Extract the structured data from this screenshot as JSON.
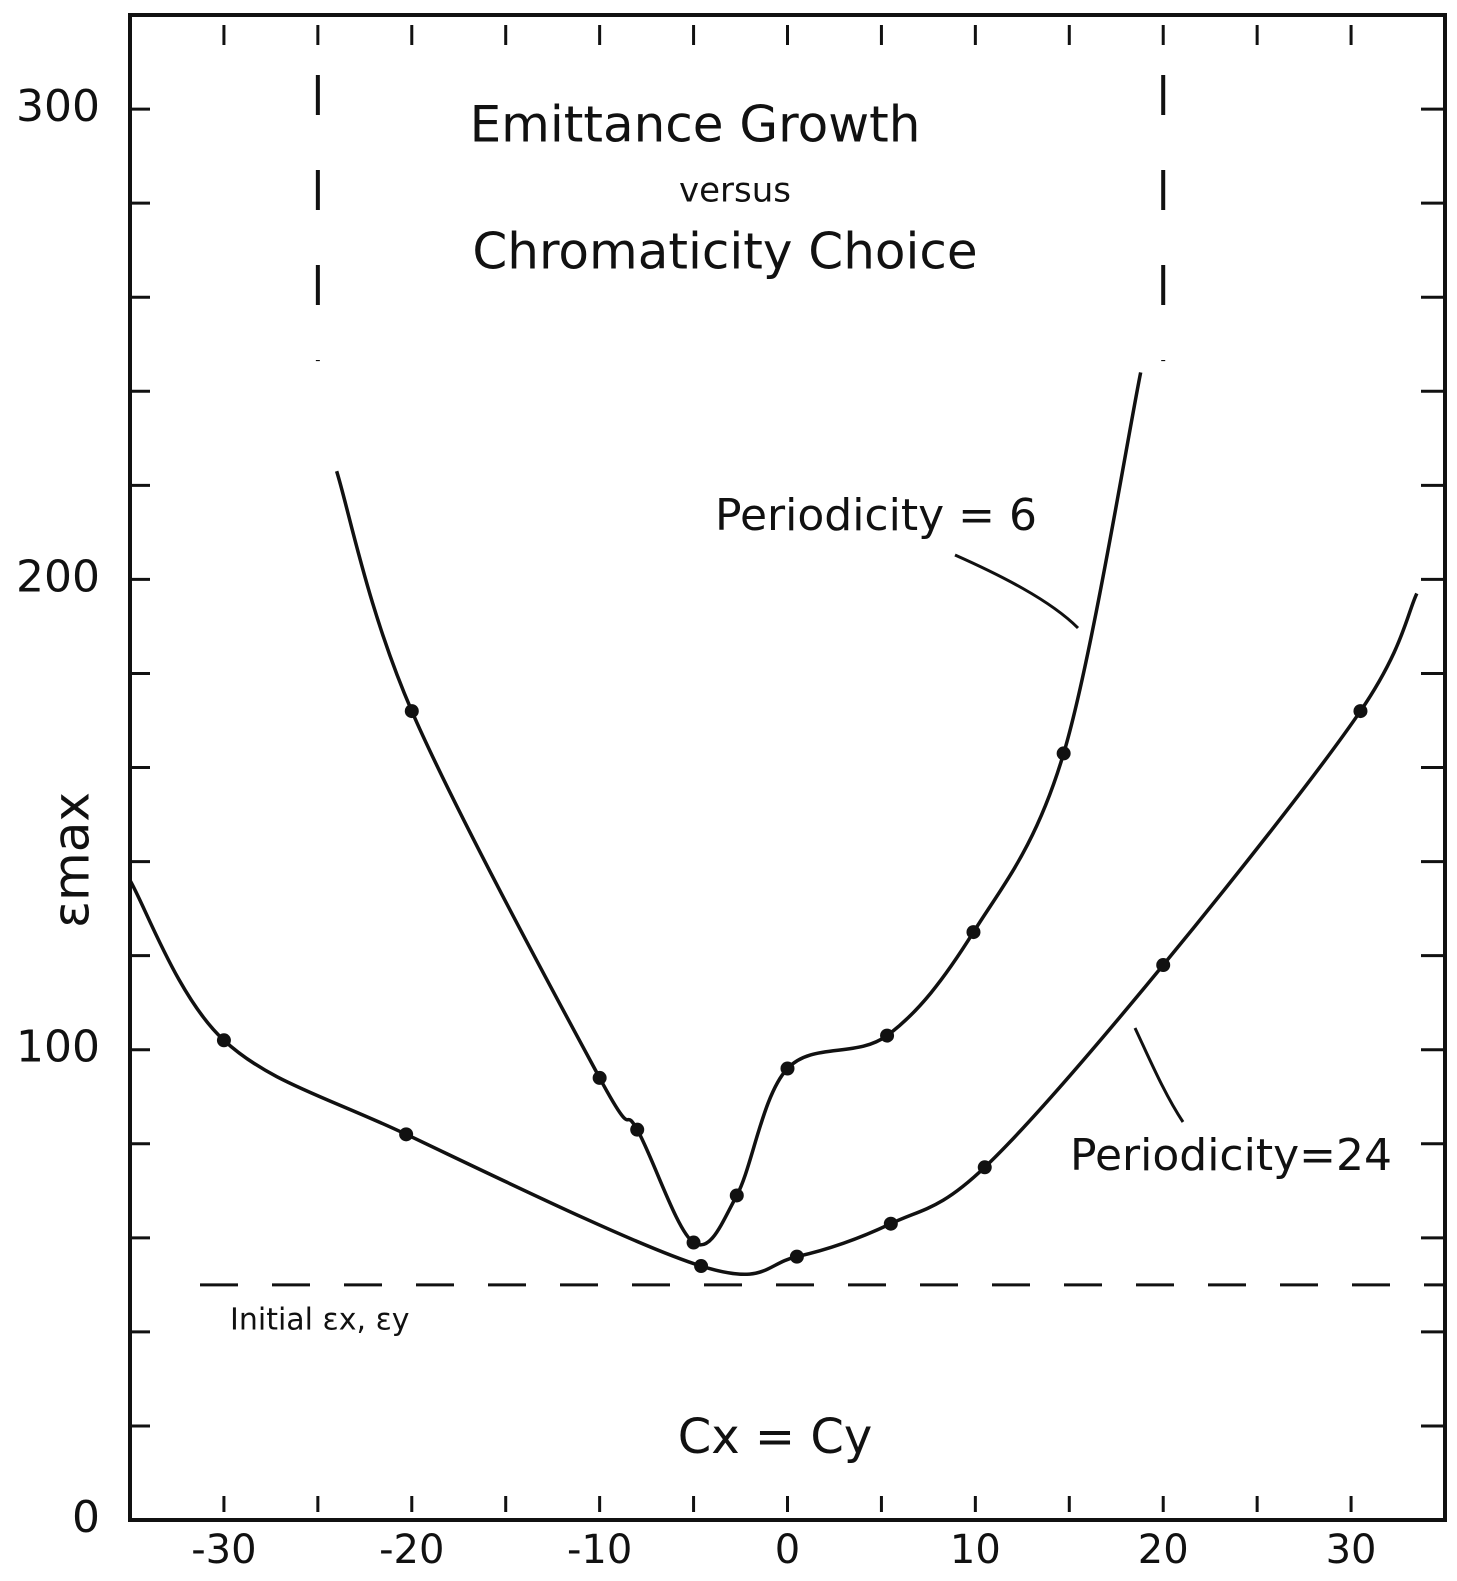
{
  "chart_data": {
    "type": "line",
    "title_lines": [
      "Emittance Growth",
      "versus",
      "Chromaticity Choice"
    ],
    "y_label": "εmax",
    "x_label": "Cx = Cy",
    "xlim": [
      -35,
      35
    ],
    "ylim": [
      0,
      320
    ],
    "xticks": [
      -30,
      -20,
      -10,
      0,
      10,
      20,
      30
    ],
    "x_minor_ticks": [
      -25,
      -15,
      -5,
      5,
      15,
      25
    ],
    "yticks": [
      0,
      100,
      200,
      300
    ],
    "y_minor_ticks": [
      20,
      40,
      60,
      80,
      120,
      140,
      160,
      180,
      220,
      240,
      260,
      280
    ],
    "asymptotes": [
      -25,
      20
    ],
    "reference_line": {
      "label": "Initial εx, εy",
      "value": 50
    },
    "color": "#111111",
    "series": [
      {
        "name": "Periodicity = 6",
        "x": [
          -24,
          -20,
          -10,
          -8,
          -5,
          -2.7,
          0,
          5.3,
          9.9,
          14.7,
          18.8
        ],
        "values": [
          223,
          172,
          94,
          83,
          59,
          69,
          96,
          103,
          125,
          163,
          244
        ]
      },
      {
        "name": "Periodicity=24",
        "x": [
          -35,
          -30,
          -20.3,
          -4.6,
          0.5,
          5.5,
          10.5,
          20,
          30.5,
          33.5
        ],
        "values": [
          136,
          102,
          82,
          54,
          56,
          63,
          75,
          118,
          172,
          197
        ]
      }
    ]
  }
}
